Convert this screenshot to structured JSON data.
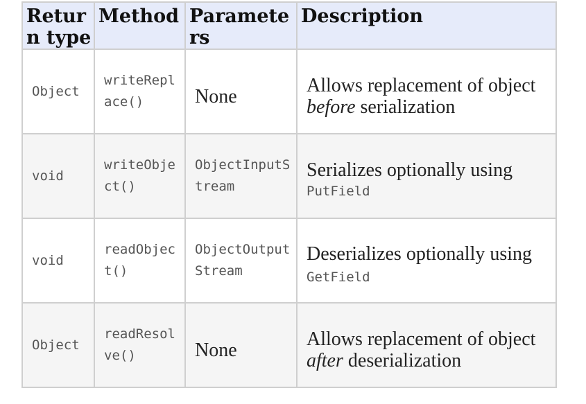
{
  "headers": [
    "Return type",
    "Method",
    "Parameters",
    "Description"
  ],
  "rows": [
    {
      "return_type": "Object",
      "method": "writeReplace()",
      "parameters": "None",
      "description": {
        "pre": "Allows replacement of object ",
        "em": "before",
        "post": " serialization"
      }
    },
    {
      "return_type": "void",
      "method": "writeObject()",
      "parameters": "ObjectInputStream",
      "description": {
        "text": "Serializes optionally using",
        "code": "PutField"
      }
    },
    {
      "return_type": "void",
      "method": "readObject()",
      "parameters": "ObjectOutputStream",
      "description": {
        "text": "Deserializes optionally using",
        "code": "GetField"
      }
    },
    {
      "return_type": "Object",
      "method": "readResolve()",
      "parameters": "None",
      "description": {
        "pre": "Allows replacement of object ",
        "em": "after",
        "post": " deserialization"
      }
    }
  ]
}
